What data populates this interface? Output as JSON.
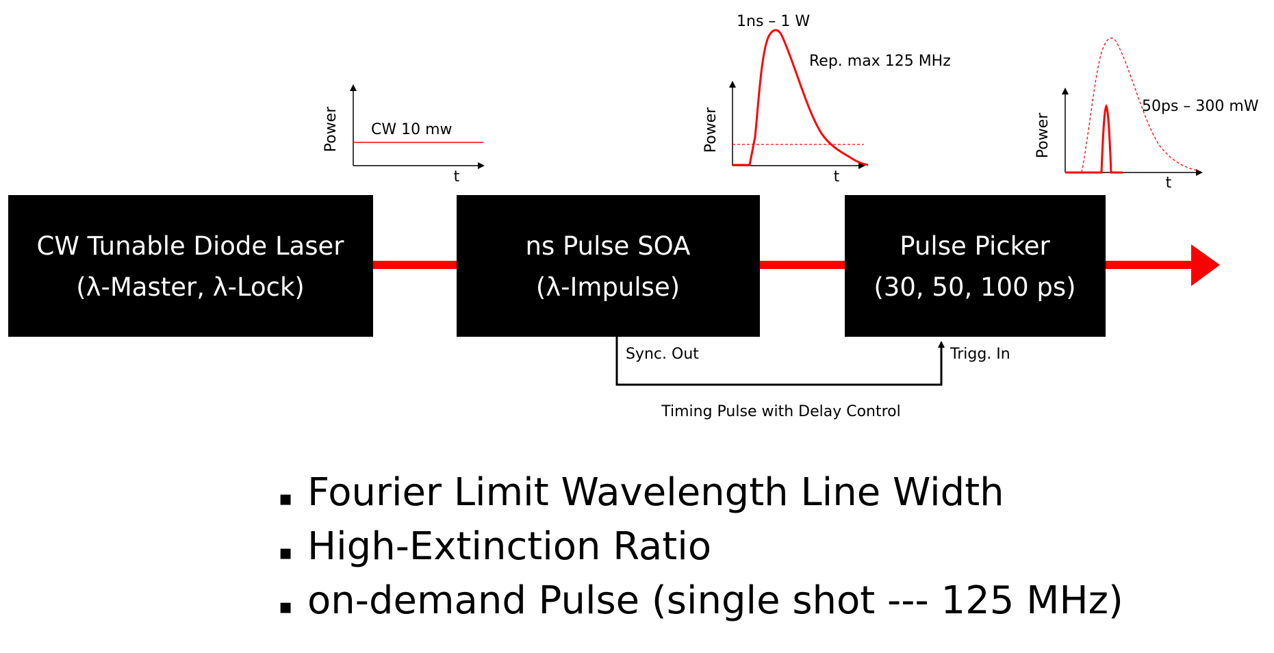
{
  "colors": {
    "beam": "#ff0000",
    "box_fill": "#000000",
    "box_text": "#ffffff",
    "line": "#000000"
  },
  "blocks": [
    {
      "line1": "CW Tunable Diode Laser",
      "line2": "(λ-Master, λ-Lock)"
    },
    {
      "line1": "ns Pulse SOA",
      "line2": "(λ-Impulse)"
    },
    {
      "line1": "Pulse Picker",
      "line2": "(30, 50, 100 ps)"
    }
  ],
  "signals": {
    "sync_out": "Sync. Out",
    "trigg_in": "Trigg. In",
    "timing": "Timing Pulse with Delay Control"
  },
  "plots": [
    {
      "ylabel": "Power",
      "xlabel": "t",
      "annotation": "CW 10 mw"
    },
    {
      "ylabel": "Power",
      "xlabel": "t",
      "annotation_peak": "1ns – 1 W",
      "annotation_rep": "Rep. max 125 MHz"
    },
    {
      "ylabel": "Power",
      "xlabel": "t",
      "annotation": "50ps – 300 mW"
    }
  ],
  "bullets": [
    {
      "marker": "▪",
      "text": "Fourier Limit Wavelength Line Width"
    },
    {
      "marker": "▪",
      "text": "High-Extinction Ratio"
    },
    {
      "marker": "▪",
      "text": "on-demand Pulse (single shot --- 125 MHz)"
    }
  ]
}
